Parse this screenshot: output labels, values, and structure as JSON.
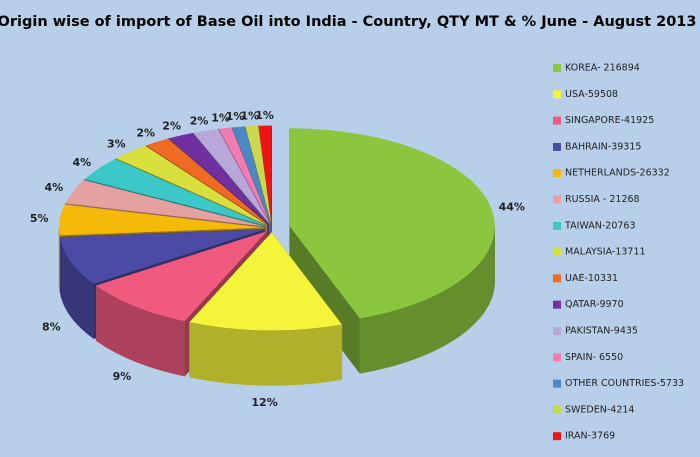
{
  "chart_data": {
    "type": "pie",
    "title": "Origin wise of import of Base Oil into India - Country, QTY MT & % June - August 2013",
    "categories": [
      "KOREA- 216894",
      "USA-59508",
      "SINGAPORE-41925",
      "BAHRAIN-39315",
      "NETHERLANDS-26332",
      "RUSSIA - 21268",
      "TAIWAN-20763",
      "MALAYSIA-13711",
      "UAE-10331",
      "QATAR-9970",
      "PAKISTAN-9435",
      "SPAIN- 6550",
      "OTHER COUNTRIES-5733",
      "SWEDEN-4214",
      "IRAN-3769"
    ],
    "values": [
      44,
      12,
      9,
      8,
      5,
      4,
      4,
      3,
      2,
      2,
      2,
      1,
      1,
      1,
      1
    ],
    "value_labels": [
      "44%",
      "12%",
      "9%",
      "8%",
      "5%",
      "4%",
      "4%",
      "3%",
      "2%",
      "2%",
      "2%",
      "1%",
      "1%",
      "1%",
      "1%"
    ],
    "colors": [
      "#8cc63e",
      "#f4f43a",
      "#ef5a7e",
      "#4b4ba6",
      "#f5b90a",
      "#e5a0a0",
      "#3cc8c8",
      "#d9e03e",
      "#ef6a22",
      "#7030a0",
      "#b8a8d8",
      "#f07cb2",
      "#4a88c6",
      "#c9d84c",
      "#ee1414"
    ],
    "legend": "right"
  }
}
